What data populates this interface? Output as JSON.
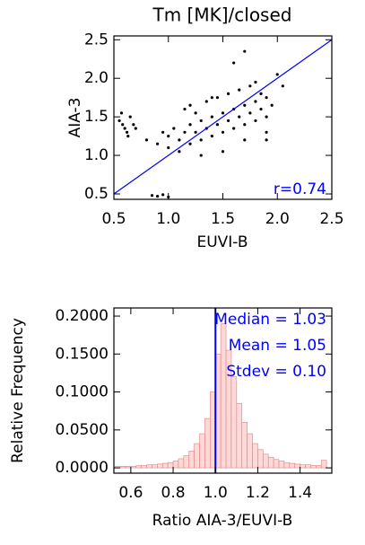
{
  "chart_data": [
    {
      "type": "scatter",
      "title": "Tm [MK]/closed",
      "x_label": "EUVI-B",
      "y_label": "AIA-3",
      "x": [
        0.55,
        0.58,
        0.6,
        0.62,
        0.65,
        0.68,
        0.7,
        0.57,
        0.63,
        0.8,
        0.9,
        1.0,
        0.95,
        1.05,
        1.1,
        1.15,
        1.2,
        1.25,
        1.3,
        1.35,
        1.4,
        1.45,
        1.5,
        1.55,
        1.6,
        1.65,
        1.7,
        1.75,
        1.8,
        1.85,
        1.9,
        1.95,
        1.0,
        1.1,
        1.2,
        1.3,
        1.4,
        1.5,
        1.6,
        1.7,
        1.8,
        1.9,
        1.15,
        1.25,
        1.35,
        1.45,
        1.55,
        1.65,
        1.75,
        1.85,
        1.3,
        1.5,
        1.7,
        1.9,
        2.0,
        2.05,
        1.6,
        1.8,
        1.4,
        0.85,
        0.9,
        0.95,
        1.0,
        1.7,
        1.9,
        1.2
      ],
      "y": [
        1.45,
        1.4,
        1.35,
        1.3,
        1.5,
        1.4,
        1.35,
        1.55,
        1.25,
        1.2,
        1.15,
        1.25,
        1.3,
        1.35,
        1.2,
        1.3,
        1.4,
        1.3,
        1.45,
        1.35,
        1.5,
        1.4,
        1.55,
        1.45,
        1.6,
        1.5,
        1.65,
        1.55,
        1.7,
        1.6,
        1.75,
        1.65,
        1.1,
        1.05,
        1.15,
        1.2,
        1.25,
        1.3,
        1.35,
        1.4,
        1.45,
        1.5,
        1.6,
        1.55,
        1.7,
        1.75,
        1.8,
        1.85,
        1.9,
        1.8,
        1.0,
        1.05,
        1.2,
        1.3,
        2.05,
        1.9,
        2.2,
        1.95,
        1.75,
        0.48,
        0.47,
        0.49,
        0.46,
        2.35,
        1.2,
        1.65
      ],
      "color": "#000000",
      "reference_line": {
        "x": [
          0.5,
          2.5
        ],
        "y": [
          0.5,
          2.5
        ],
        "color": "#0000ff"
      },
      "annotation": "r=0.74",
      "annotation_color": "#0000ff",
      "xlim": [
        0.5,
        2.5
      ],
      "xticks": [
        0.5,
        {
          "value": 1.0,
          "label": "1.0"
        },
        1.5,
        {
          "value": 2.0,
          "label": "2.0"
        },
        2.5
      ],
      "ylim": [
        0.43,
        2.55
      ],
      "yticks": [
        0.5,
        {
          "value": 1.0,
          "label": "1.0"
        },
        1.5,
        {
          "value": 2.0,
          "label": "2.0"
        },
        2.5
      ]
    },
    {
      "type": "histogram",
      "x_label": "Ratio AIA-3/EUVI-B",
      "y_label": "Relative Frequency",
      "bins": [
        0.525,
        0.55,
        0.575,
        0.6,
        0.625,
        0.65,
        0.675,
        0.7,
        0.725,
        0.75,
        0.775,
        0.8,
        0.825,
        0.85,
        0.875,
        0.9,
        0.925,
        0.95,
        0.975,
        1.0,
        1.025,
        1.05,
        1.075,
        1.1,
        1.125,
        1.15,
        1.175,
        1.2,
        1.225,
        1.25,
        1.275,
        1.3,
        1.325,
        1.35,
        1.375,
        1.4,
        1.425,
        1.45,
        1.475,
        1.5,
        1.525
      ],
      "values": [
        0.002,
        0.002,
        0.002,
        0.002,
        0.003,
        0.003,
        0.004,
        0.004,
        0.005,
        0.006,
        0.007,
        0.009,
        0.012,
        0.016,
        0.022,
        0.032,
        0.045,
        0.065,
        0.1,
        0.15,
        0.19,
        0.155,
        0.12,
        0.085,
        0.06,
        0.045,
        0.032,
        0.024,
        0.018,
        0.014,
        0.011,
        0.009,
        0.007,
        0.006,
        0.005,
        0.004,
        0.004,
        0.003,
        0.003,
        0.01
      ],
      "color": "#ffd8d8",
      "edge_color": "#e08080",
      "vline": 1.0,
      "vline_color": "#0000ff",
      "annotations": [
        "Median = 1.03",
        "Mean = 1.05",
        "Stdev = 0.10"
      ],
      "annotation_color": "#0000ff",
      "xlim": [
        0.52,
        1.55
      ],
      "xticks": [
        0.6,
        0.8,
        {
          "value": 1.0,
          "label": "1.0"
        },
        1.2,
        1.4
      ],
      "ylim": [
        -0.007,
        0.2107
      ],
      "yticks": [
        {
          "value": 0,
          "label": "0.0000"
        },
        {
          "value": 0.05,
          "label": "0.0500"
        },
        {
          "value": 0.1,
          "label": "0.1000"
        },
        {
          "value": 0.15,
          "label": "0.1500"
        },
        {
          "value": 0.2,
          "label": "0.2000"
        }
      ]
    }
  ]
}
